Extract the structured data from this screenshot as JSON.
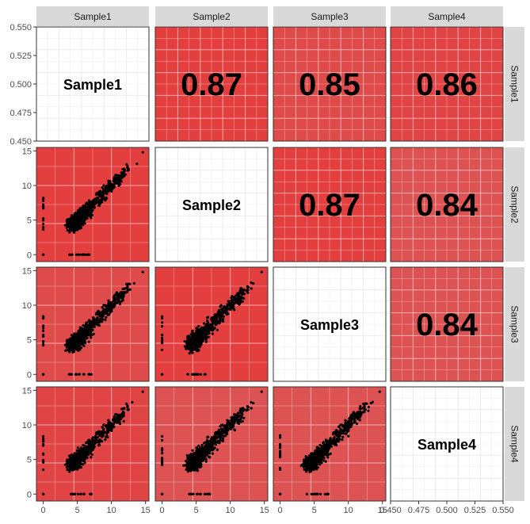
{
  "chart_data": {
    "type": "scatter",
    "variables": [
      "Sample1",
      "Sample2",
      "Sample3",
      "Sample4"
    ],
    "correlations": [
      {
        "row": 0,
        "col": 1,
        "label": "0.87"
      },
      {
        "row": 0,
        "col": 2,
        "label": "0.85"
      },
      {
        "row": 0,
        "col": 3,
        "label": "0.86"
      },
      {
        "row": 1,
        "col": 2,
        "label": "0.87"
      },
      {
        "row": 1,
        "col": 3,
        "label": "0.84"
      },
      {
        "row": 2,
        "col": 3,
        "label": "0.84"
      }
    ],
    "scatter_ticks": [
      "0",
      "5",
      "10",
      "15"
    ],
    "scatter_range": [
      -1,
      15.5
    ],
    "diag_ticks": [
      "0.450",
      "0.475",
      "0.500",
      "0.525",
      "0.550"
    ],
    "diag_range": [
      0.45,
      0.55
    ],
    "grid": true,
    "point_color": "#000000",
    "panel_colors": {
      "0.87": "#e43f3f",
      "0.86": "#e14444",
      "0.85": "#df4a4a",
      "0.84": "#dd5252"
    },
    "strip_color": "#d9d9d9"
  }
}
